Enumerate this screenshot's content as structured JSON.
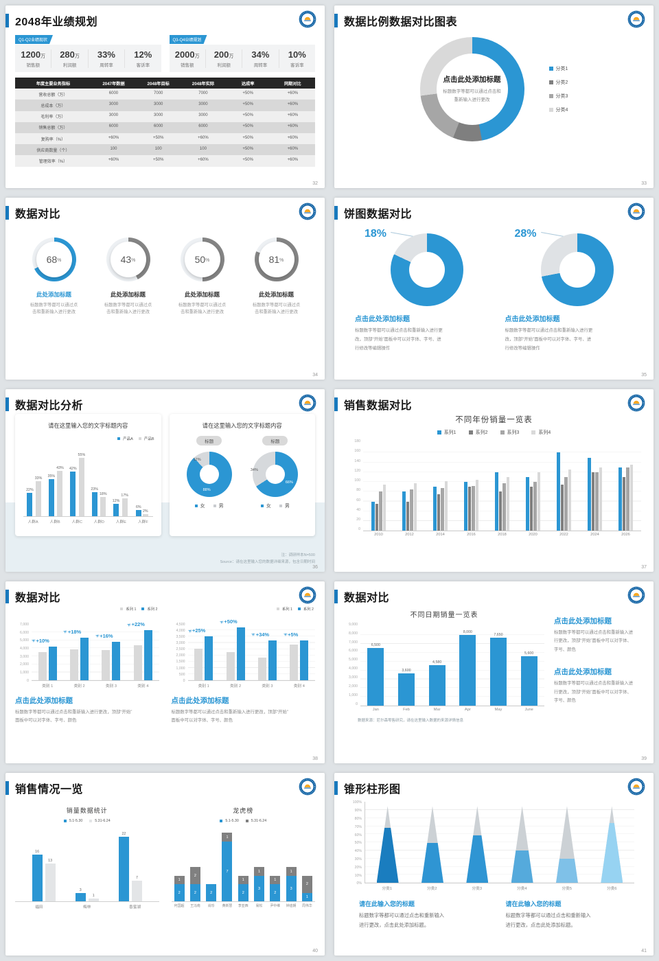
{
  "colors": {
    "blue": "#2b96d3",
    "accent_bar": "#1879bd",
    "dark_gray": "#7f7f7f",
    "mid_gray": "#a6a6a6",
    "light_gray": "#d9d9d9",
    "table_header_bg": "#262626"
  },
  "s32": {
    "title": "2048年业绩规划",
    "page_num": "32",
    "groups": [
      {
        "badge": "Q1-Q2业绩现状",
        "stats": [
          {
            "value": "1200",
            "unit": "万",
            "label": "销售额"
          },
          {
            "value": "280",
            "unit": "万",
            "label": "利润额"
          },
          {
            "value": "33%",
            "unit": "",
            "label": "周转率"
          },
          {
            "value": "12%",
            "unit": "",
            "label": "客诉率"
          }
        ]
      },
      {
        "badge": "Q3-Q4业绩规划",
        "stats": [
          {
            "value": "2000",
            "unit": "万",
            "label": "销售额"
          },
          {
            "value": "200",
            "unit": "万",
            "label": "利润额"
          },
          {
            "value": "34%",
            "unit": "",
            "label": "周转率"
          },
          {
            "value": "10%",
            "unit": "",
            "label": "客诉率"
          }
        ]
      }
    ],
    "table": {
      "headers": [
        "年度主要业务指标",
        "2047年数据",
        "2048年目标",
        "2048年实际",
        "达成率",
        "同期对比"
      ],
      "rows": [
        [
          "营收总额（万）",
          "6000",
          "7000",
          "7000",
          "+50%",
          "+60%"
        ],
        [
          "总成本（万）",
          "3000",
          "3000",
          "3000",
          "+50%",
          "+60%"
        ],
        [
          "毛利率（万）",
          "3000",
          "3000",
          "3000",
          "+50%",
          "+60%"
        ],
        [
          "销售总额（万）",
          "6000",
          "6000",
          "6000",
          "+50%",
          "+60%"
        ],
        [
          "复购率（%）",
          "+60%",
          "+50%",
          "+60%",
          "+50%",
          "+60%"
        ],
        [
          "供应商数量（个）",
          "100",
          "100",
          "100",
          "+50%",
          "+60%"
        ],
        [
          "管理效率（%）",
          "+60%",
          "+50%",
          "+60%",
          "+50%",
          "+60%"
        ]
      ]
    }
  },
  "s33": {
    "title": "数据比例数据对比图表",
    "page_num": "33",
    "center_title": "点击此处添加标题",
    "center_line1": "标题数字等都可以通过点击和",
    "center_line2": "重新输入进行更改",
    "chart_data": {
      "type": "pie",
      "segments": [
        47,
        9,
        17,
        27
      ],
      "legend": [
        {
          "label": "分类1",
          "color": "#2b96d3"
        },
        {
          "label": "分类2",
          "color": "#7f7f7f"
        },
        {
          "label": "分类3",
          "color": "#a6a6a6"
        },
        {
          "label": "分类4",
          "color": "#d9d9d9"
        }
      ]
    }
  },
  "s34": {
    "title": "数据对比",
    "page_num": "34",
    "item_title": "此处添加标题",
    "desc": [
      "标题数字等都可以通过点",
      "击和重新输入进行更改"
    ],
    "items": [
      {
        "value": 68,
        "color": "#2b96d3",
        "accent": true
      },
      {
        "value": 43,
        "color": "#848484",
        "accent": false
      },
      {
        "value": 50,
        "color": "#848484",
        "accent": false
      },
      {
        "value": 81,
        "color": "#848484",
        "accent": false
      }
    ]
  },
  "s35": {
    "title": "饼图数据对比",
    "page_num": "35",
    "block_title": "点击此处添加标题",
    "desc": [
      "标题数字等都可以通过点击和重新输入进行更",
      "改，顶部“开始”面板中可以对字体、字号、进",
      "行修改等编辑操作"
    ],
    "items": [
      {
        "label": "18%",
        "value": 18
      },
      {
        "label": "28%",
        "value": 28
      }
    ]
  },
  "s36": {
    "title": "数据对比分析",
    "page_num": "36",
    "notes": [
      "注：调研样本N=500",
      "Source：请在这里输入您的数据详细来源，包含日期时间"
    ],
    "card1": {
      "title": "请在这里输入您的文字标题内容",
      "chart_data": {
        "type": "bar",
        "categories": [
          "人群A",
          "人群B",
          "人群C",
          "人群D",
          "人群E",
          "人群F"
        ],
        "series": [
          {
            "name": "产品A",
            "color": "#2b96d3",
            "values": [
              22,
              35,
              42,
              23,
              12,
              6
            ]
          },
          {
            "name": "产品B",
            "color": "#d9d9d9",
            "values": [
              33,
              43,
              55,
              18,
              17,
              2
            ]
          }
        ],
        "unit": "%"
      }
    },
    "card2": {
      "title": "请在这里输入您的文字标题内容",
      "pill": "标题",
      "legend": [
        "女",
        "男"
      ],
      "donuts": [
        {
          "blue": 88,
          "gray": 12
        },
        {
          "blue": 66,
          "gray": 34
        }
      ]
    }
  },
  "s37": {
    "title": "销售数据对比",
    "page_num": "37",
    "chart_title": "不同年份销量一览表",
    "chart_data": {
      "type": "bar",
      "categories": [
        "2010",
        "2012",
        "2014",
        "2016",
        "2018",
        "2020",
        "2022",
        "2024",
        "2026"
      ],
      "ymax": 180,
      "ystep": 20,
      "series": [
        {
          "name": "系列1",
          "color": "#2b96d3",
          "values": [
            60,
            80,
            90,
            100,
            120,
            110,
            160,
            150,
            130
          ]
        },
        {
          "name": "系列2",
          "color": "#7f7f7f",
          "values": [
            55,
            60,
            75,
            90,
            80,
            90,
            95,
            120,
            110
          ]
        },
        {
          "name": "系列3",
          "color": "#a6a6a6",
          "values": [
            80,
            85,
            88,
            92,
            97,
            100,
            110,
            120,
            130
          ]
        },
        {
          "name": "系列4",
          "color": "#d9d9d9",
          "values": [
            95,
            98,
            102,
            105,
            110,
            120,
            125,
            130,
            135
          ]
        }
      ]
    }
  },
  "s38": {
    "title": "数据对比",
    "page_num": "38",
    "block_title": "点击此处添加标题",
    "block_lines": [
      "标题数字等都可以通过点击和重新输入进行更改，顶部“开始”",
      "面板中可以对字体、字号、颜色"
    ],
    "arrow_glyph": "➤",
    "legend": [
      {
        "label": "系列 1",
        "color": "#d9d9d9"
      },
      {
        "label": "系列 2",
        "color": "#2b96d3"
      }
    ],
    "charts": [
      {
        "type": "bar",
        "ymax": 7000,
        "ystep": 1000,
        "categories": [
          "类别 1",
          "类别 2",
          "类别 3",
          "类别 4"
        ],
        "gray": [
          3500,
          3800,
          3700,
          4300
        ],
        "blue": [
          4200,
          5300,
          4800,
          6200
        ],
        "annotations": [
          "+10%",
          "+18%",
          "+16%",
          "+22%"
        ]
      },
      {
        "type": "bar",
        "ymax": 4500,
        "ystep": 500,
        "categories": [
          "类别 1",
          "类别 2",
          "类别 3",
          "类别 4"
        ],
        "gray": [
          2500,
          2250,
          1800,
          2850
        ],
        "blue": [
          3500,
          4200,
          3200,
          3200
        ],
        "annotations": [
          "+25%",
          "+50%",
          "+34%",
          "+5%"
        ]
      }
    ]
  },
  "s39": {
    "title": "数据对比",
    "page_num": "39",
    "chart_title": "不同日期销量一览表",
    "note": "数据来源：尼尔森零售研究，请在这里输入数据的来源详情信息",
    "block_title": "点击此处添加标题",
    "block_lines": [
      "标题数字等都可以通过点击和重新输入进",
      "行更改，顶部“开始”面板中可以对字体、",
      "字号、颜色"
    ],
    "chart_data": {
      "type": "bar",
      "ymax": 9000,
      "ystep": 1000,
      "categories": [
        "Jan",
        "Feb",
        "Mar",
        "Apr",
        "May",
        "June"
      ],
      "values": [
        6500,
        3600,
        4580,
        8000,
        7650,
        5600
      ],
      "labels": [
        "6,500",
        "3,600",
        "4,580",
        "8,000",
        "7,650",
        "5,600"
      ],
      "color": "#2b96d3"
    }
  },
  "s40": {
    "title": "销售情况一览",
    "page_num": "40",
    "left": {
      "chart_title": "销量数据统计",
      "legend": [
        {
          "label": "5.1-5.30",
          "color": "#2b96d3"
        },
        {
          "label": "5.31-6.24",
          "color": "#e3e5e7"
        }
      ],
      "chart_data": {
        "type": "bar",
        "categories": [
          "福田",
          "梅林",
          "香蜜湖"
        ],
        "series": [
          {
            "name": "5.1-5.30",
            "values": [
              16,
              3,
              22
            ]
          },
          {
            "name": "5.31-6.24",
            "values": [
              13,
              1,
              7
            ]
          }
        ]
      }
    },
    "right": {
      "chart_title": "龙虎榜",
      "legend": [
        {
          "label": "5.1-5.30",
          "color": "#2b96d3"
        },
        {
          "label": "5.31-6.24",
          "color": "#808080"
        }
      ],
      "chart_data": {
        "type": "stacked-bar",
        "categories": [
          "何国超",
          "王冯南",
          "肖珍",
          "黄新慧",
          "李亚西",
          "易松",
          "尹中维",
          "钟迪朝",
          "周伟华"
        ],
        "blue": [
          2,
          2,
          2,
          7,
          2,
          3,
          2,
          3,
          1
        ],
        "gray": [
          1,
          2,
          0,
          1,
          1,
          1,
          1,
          1,
          2
        ]
      }
    }
  },
  "s41": {
    "title": "锥形柱形图",
    "page_num": "41",
    "block_title": "请在此输入您的标题",
    "block_lines": [
      "标题数字等都可以通过点击和重新输入",
      "进行更改，点击此处添加标题。"
    ],
    "chart_data": {
      "type": "cone-bar",
      "ymax": 100,
      "ystep": 10,
      "categories": [
        "分类1",
        "分类2",
        "分类3",
        "分类4",
        "分类5",
        "分类6"
      ],
      "fills": [
        72,
        52,
        62,
        42,
        32,
        78
      ],
      "colors": [
        "#1a7dbf",
        "#2f95d3",
        "#2f95d3",
        "#55aadc",
        "#7fc1e8",
        "#97d3f2"
      ],
      "empty_color": "#ccd1d5"
    }
  }
}
